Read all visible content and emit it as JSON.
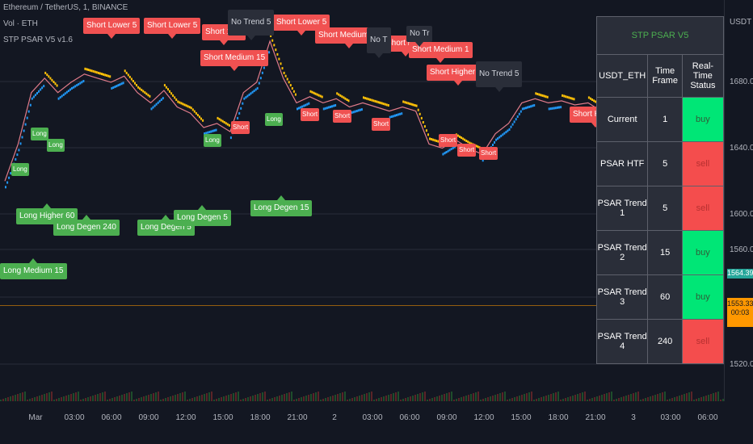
{
  "legend": {
    "symbol": "Ethereum / TetherUS, 1, BINANCE",
    "volume": "Vol · ETH",
    "indicator": "STP PSAR V5 v1.6"
  },
  "axis": {
    "currency": "USDT",
    "y_ticks": [
      "1680.00",
      "1640.00",
      "1600.00",
      "1560.00",
      "1520.00"
    ],
    "x_ticks": [
      "Mar",
      "03:00",
      "06:00",
      "09:00",
      "12:00",
      "15:00",
      "18:00",
      "21:00",
      "2",
      "03:00",
      "06:00",
      "09:00",
      "12:00",
      "15:00",
      "18:00",
      "21:00",
      "3",
      "03:00",
      "06:00"
    ],
    "price_current": "1564.39",
    "price_other": "1553.33",
    "countdown": "00:03"
  },
  "colors": {
    "background": "#131722",
    "sell": "#f05151",
    "buy": "#4caf50",
    "psar_up": "#ffc107",
    "psar_down": "#2196f3",
    "price": "#e07b8a"
  },
  "signals": {
    "short": [
      "Short Lower 5",
      "Short Lower 5",
      "Short Lower 5",
      "Short Medium 15",
      "Short Medium 15",
      "Short Higher 60",
      "Short Higher",
      "Short 1 ou",
      "Short Medi",
      "Short Medium 1"
    ],
    "no_trend": [
      "No Trend 5",
      "No Trend 5",
      "No T",
      "No Tr"
    ],
    "long": [
      "Long Higher 60",
      "Long Degen 240",
      "Long Degen 5",
      "Long Degen 5",
      "Long Degen 15",
      "Long Medium 15"
    ],
    "short_small": "Short",
    "long_small": "Long"
  },
  "table": {
    "title": "STP PSAR V5",
    "headers": [
      "USDT_ETH",
      "Time Frame",
      "Real-Time Status"
    ],
    "rows": [
      {
        "name": "Current",
        "tf": "1",
        "status": "buy"
      },
      {
        "name": "PSAR HTF",
        "tf": "5",
        "status": "sell"
      },
      {
        "name": "PSAR Trend 1",
        "tf": "5",
        "status": "sell"
      },
      {
        "name": "PSAR Trend 2",
        "tf": "15",
        "status": "buy"
      },
      {
        "name": "PSAR Trend 3",
        "tf": "60",
        "status": "buy"
      },
      {
        "name": "PSAR Trend 4",
        "tf": "240",
        "status": "sell"
      }
    ]
  },
  "chart_data": {
    "type": "line",
    "series": [
      {
        "x": [
          "Mar 00:00",
          "Mar 01:00",
          "Mar 02:00",
          "Mar 03:00",
          "Mar 04:00",
          "Mar 05:00",
          "Mar 06:00",
          "Mar 07:00",
          "Mar 08:00",
          "Mar 09:00",
          "Mar 10:00",
          "Mar 11:00",
          "Mar 12:00",
          "Mar 13:00",
          "Mar 14:00",
          "Mar 15:00",
          "Mar 16:00",
          "Mar 17:00",
          "Mar 18:00",
          "Mar 19:00",
          "Mar 20:00",
          "Mar 21:00",
          "Mar 22:00",
          "Mar 23:00",
          "2 00:00",
          "2 01:00",
          "2 02:00",
          "2 03:00",
          "2 04:00",
          "2 05:00",
          "2 06:00",
          "2 07:00",
          "2 08:00",
          "2 09:00",
          "2 10:00",
          "2 11:00",
          "2 12:00",
          "2 13:00",
          "2 14:00",
          "2 15:00",
          "2 16:00",
          "2 17:00",
          "2 18:00",
          "2 19:00",
          "2 20:00",
          "2 21:00",
          "2 22:00",
          "2 23:00",
          "3 00:00",
          "3 01:00",
          "3 02:00",
          "3 03:00",
          "3 04:00",
          "3 05:00",
          "3 06:00"
        ],
        "values": [
          1612,
          1630,
          1655,
          1662,
          1655,
          1660,
          1664,
          1662,
          1660,
          1663,
          1655,
          1650,
          1656,
          1648,
          1645,
          1638,
          1640,
          1636,
          1655,
          1660,
          1680,
          1662,
          1650,
          1653,
          1650,
          1652,
          1648,
          1650,
          1648,
          1646,
          1648,
          1646,
          1630,
          1628,
          1632,
          1628,
          1625,
          1635,
          1640,
          1650,
          1652,
          1650,
          1651,
          1649,
          1650,
          1646,
          1572,
          1563,
          1564,
          1565,
          1563,
          1562,
          1564,
          1563,
          1564
        ]
      }
    ],
    "ylim": [
      1505,
      1700
    ]
  }
}
